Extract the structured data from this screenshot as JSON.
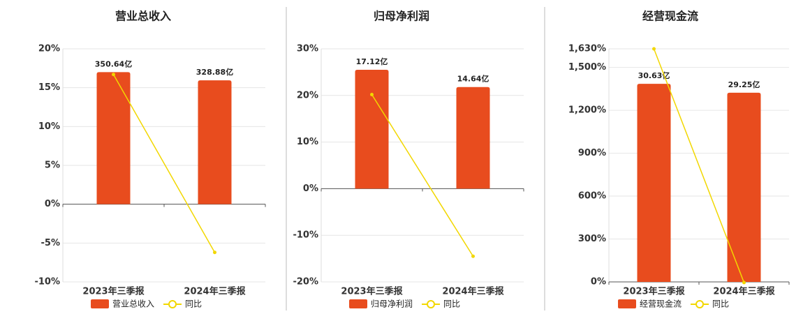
{
  "chart_data": [
    {
      "type": "combo",
      "title": "营业总收入",
      "categories": [
        "2023年三季报",
        "2024年三季报"
      ],
      "series": [
        {
          "name": "营业总收入",
          "type": "bar",
          "color": "#e84c1e",
          "values": [
            350.64,
            328.88
          ],
          "value_labels": [
            "350.64亿",
            "328.88亿"
          ]
        },
        {
          "name": "同比",
          "type": "line",
          "color": "#f2d700",
          "values": [
            16.7,
            -6.2
          ]
        }
      ],
      "ylim": [
        -10,
        20
      ],
      "yticks": [
        {
          "value": -10,
          "label": "-10%"
        },
        {
          "value": -5,
          "label": "-5%"
        },
        {
          "value": 0,
          "label": "0%"
        },
        {
          "value": 5,
          "label": "5%"
        },
        {
          "value": 10,
          "label": "10%"
        },
        {
          "value": 15,
          "label": "15%"
        },
        {
          "value": 20,
          "label": "20%"
        }
      ],
      "grid": true
    },
    {
      "type": "combo",
      "title": "归母净利润",
      "categories": [
        "2023年三季报",
        "2024年三季报"
      ],
      "series": [
        {
          "name": "归母净利润",
          "type": "bar",
          "color": "#e84c1e",
          "values": [
            17.12,
            14.64
          ],
          "value_labels": [
            "17.12亿",
            "14.64亿"
          ]
        },
        {
          "name": "同比",
          "type": "line",
          "color": "#f2d700",
          "values": [
            20.2,
            -14.5
          ]
        }
      ],
      "ylim": [
        -20,
        30
      ],
      "yticks": [
        {
          "value": -20,
          "label": "-20%"
        },
        {
          "value": -10,
          "label": "-10%"
        },
        {
          "value": 0,
          "label": "0%"
        },
        {
          "value": 10,
          "label": "10%"
        },
        {
          "value": 20,
          "label": "20%"
        },
        {
          "value": 30,
          "label": "30%"
        }
      ],
      "grid": true
    },
    {
      "type": "combo",
      "title": "经营现金流",
      "categories": [
        "2023年三季报",
        "2024年三季报"
      ],
      "series": [
        {
          "name": "经营现金流",
          "type": "bar",
          "color": "#e84c1e",
          "values": [
            30.63,
            29.25
          ],
          "value_labels": [
            "30.63亿",
            "29.25亿"
          ]
        },
        {
          "name": "同比",
          "type": "line",
          "color": "#f2d700",
          "values": [
            1630,
            -4.5
          ]
        }
      ],
      "ylim": [
        0,
        1630
      ],
      "yticks": [
        {
          "value": 0,
          "label": "0%"
        },
        {
          "value": 300,
          "label": "300%"
        },
        {
          "value": 600,
          "label": "600%"
        },
        {
          "value": 900,
          "label": "900%"
        },
        {
          "value": 1200,
          "label": "1,200%"
        },
        {
          "value": 1500,
          "label": "1,500%"
        },
        {
          "value": 1630,
          "label": "1,630%"
        }
      ],
      "grid": true
    }
  ]
}
